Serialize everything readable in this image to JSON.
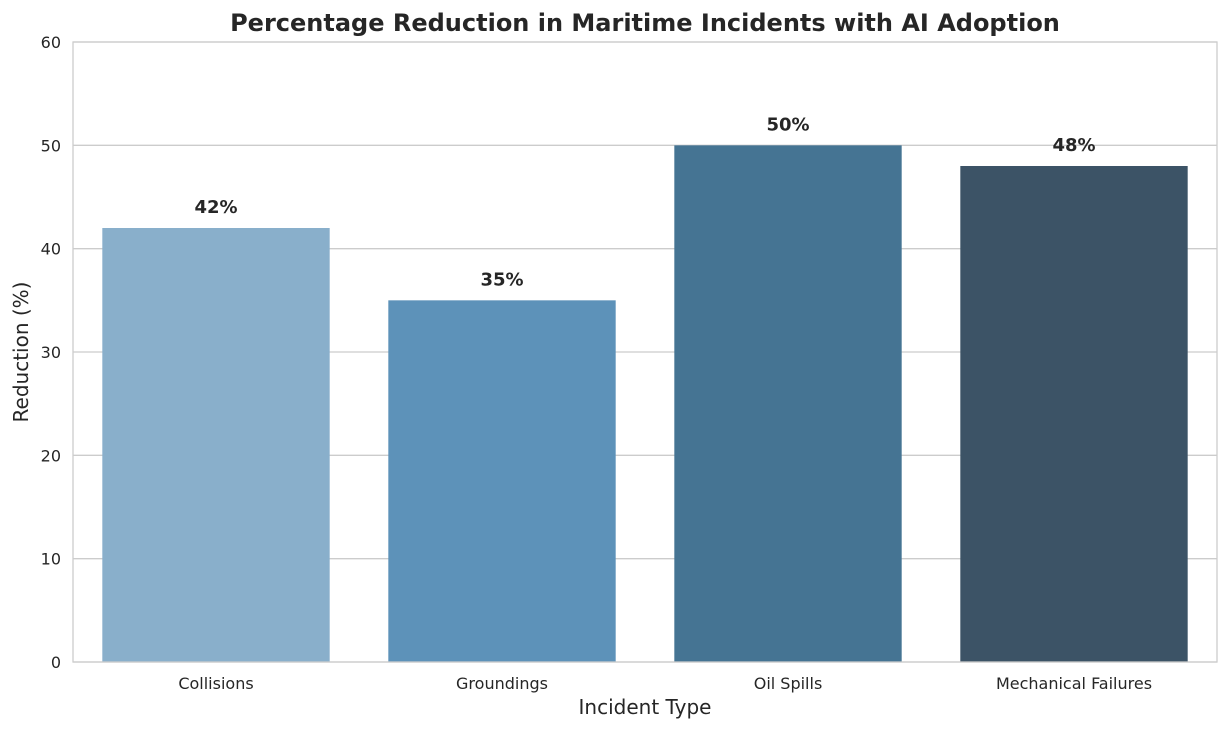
{
  "chart_data": {
    "type": "bar",
    "title": "Percentage Reduction in Maritime Incidents with AI Adoption",
    "xlabel": "Incident Type",
    "ylabel": "Reduction (%)",
    "categories": [
      "Collisions",
      "Groundings",
      "Oil Spills",
      "Mechanical Failures"
    ],
    "values": [
      42,
      35,
      50,
      48
    ],
    "value_labels": [
      "42%",
      "35%",
      "50%",
      "48%"
    ],
    "ylim": [
      0,
      60
    ],
    "yticks": [
      0,
      10,
      20,
      30,
      40,
      50,
      60
    ],
    "bar_colors": [
      "#89afcb",
      "#5d92b9",
      "#457493",
      "#3c5366"
    ],
    "grid": true,
    "legend": "none"
  }
}
